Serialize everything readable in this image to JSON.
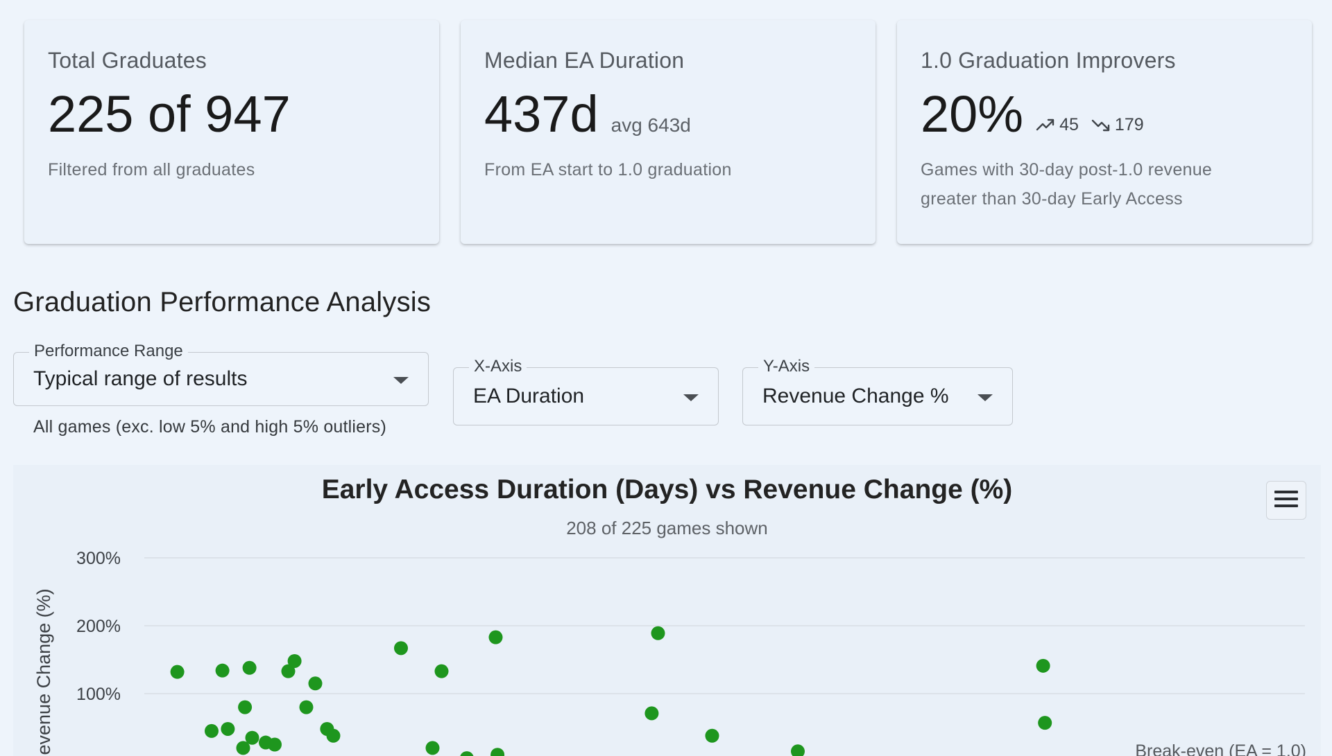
{
  "cards": [
    {
      "title": "Total Graduates",
      "value": "225 of 947",
      "caption": "Filtered from all graduates"
    },
    {
      "title": "Median EA Duration",
      "value": "437d",
      "sub_value": "avg 643d",
      "caption": "From EA start to 1.0 graduation"
    },
    {
      "title": "1.0 Graduation Improvers",
      "value": "20%",
      "trend_up": "45",
      "trend_down": "179",
      "caption_line1": "Games with 30-day post-1.0 revenue",
      "caption_line2": "greater than 30-day Early Access"
    }
  ],
  "section_title": "Graduation Performance Analysis",
  "controls": {
    "performance_range": {
      "label": "Performance Range",
      "value": "Typical range of results",
      "helper": "All games (exc. low 5% and high 5% outliers)"
    },
    "x_axis": {
      "label": "X-Axis",
      "value": "EA Duration"
    },
    "y_axis": {
      "label": "Y-Axis",
      "value": "Revenue Change %"
    }
  },
  "icons": {
    "trend_up": "trending-up-icon",
    "trend_down": "trending-down-icon",
    "dropdown": "chevron-down-icon",
    "menu": "hamburger-menu-icon"
  },
  "colors": {
    "point": "#1e961e",
    "background": "#eef4fb"
  },
  "chart_data": {
    "type": "scatter",
    "title": "Early Access Duration (Days) vs Revenue Change (%)",
    "subtitle": "208 of 225 games shown",
    "ylabel": "Revenue Change (%)",
    "y_tick_labels": [
      "300%",
      "200%",
      "100%"
    ],
    "y_ticks": [
      300,
      200,
      100
    ],
    "ylim": [
      0,
      300
    ],
    "annotation": "Break-even (EA = 1.0)",
    "grid": true,
    "series": [
      {
        "values": [
          [
            0.12,
            132
          ],
          [
            0.62,
            134
          ],
          [
            0.92,
            138
          ],
          [
            1.35,
            133
          ],
          [
            1.42,
            148
          ],
          [
            1.65,
            115
          ],
          [
            0.87,
            80
          ],
          [
            1.55,
            80
          ],
          [
            0.5,
            45
          ],
          [
            0.68,
            48
          ],
          [
            0.95,
            35
          ],
          [
            1.1,
            28
          ],
          [
            1.2,
            25
          ],
          [
            0.85,
            20
          ],
          [
            1.78,
            48
          ],
          [
            1.85,
            38
          ],
          [
            2.6,
            167
          ],
          [
            3.05,
            133
          ],
          [
            3.65,
            183
          ],
          [
            2.95,
            20
          ],
          [
            3.67,
            10
          ],
          [
            3.33,
            5
          ],
          [
            5.45,
            189
          ],
          [
            5.38,
            71
          ],
          [
            6.05,
            38
          ],
          [
            7.0,
            15
          ],
          [
            9.72,
            141
          ],
          [
            9.74,
            57
          ]
        ]
      }
    ]
  }
}
